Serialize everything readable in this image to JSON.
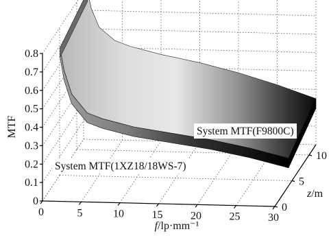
{
  "chart_data": {
    "type": "surface",
    "xlabel": "f/lp·mm⁻¹",
    "xlabel_var": "f",
    "xlabel_unit": "/lp·mm⁻¹",
    "ylabel": "MTF",
    "zlabel": "z/m",
    "zlabel_var": "z",
    "zlabel_unit": "/m",
    "xlim": [
      0,
      30
    ],
    "ylim": [
      0,
      0.8
    ],
    "zlim": [
      0,
      12
    ],
    "x_ticks": [
      "0",
      "5",
      "10",
      "15",
      "20",
      "25",
      "30"
    ],
    "y_ticks": [
      "0",
      "0.1",
      "0.2",
      "0.3",
      "0.4",
      "0.5",
      "0.6",
      "0.7",
      "0.8"
    ],
    "z_ticks": [
      "0",
      "5",
      "10"
    ],
    "grid": true,
    "annotations": [
      "System MTF(F9800C)",
      "System MTF(1XZ18/18WS-7)"
    ],
    "series": [
      {
        "name": "System MTF(F9800C)",
        "x": [
          0.5,
          1,
          2,
          4,
          6,
          8,
          10,
          15,
          20,
          25,
          30
        ],
        "values": [
          0.8,
          0.71,
          0.61,
          0.54,
          0.51,
          0.49,
          0.47,
          0.43,
          0.38,
          0.32,
          0.25
        ]
      },
      {
        "name": "System MTF(1XZ18/18WS-7)",
        "x": [
          0.5,
          1,
          2,
          4,
          6,
          8,
          10,
          15,
          20,
          25,
          30
        ],
        "values": [
          0.72,
          0.6,
          0.47,
          0.37,
          0.34,
          0.32,
          0.3,
          0.27,
          0.24,
          0.2,
          0.15
        ]
      }
    ]
  }
}
